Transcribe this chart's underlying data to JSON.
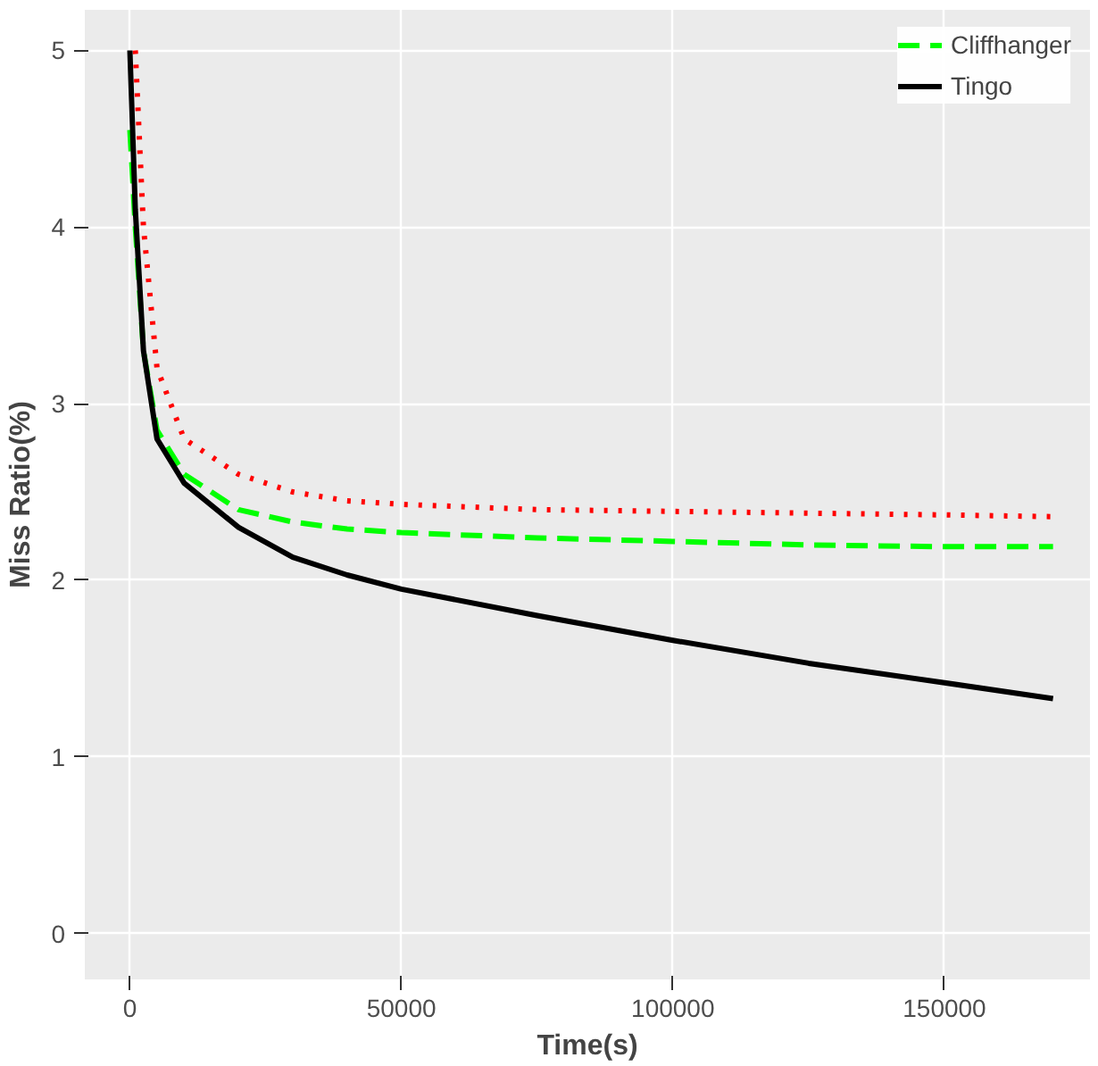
{
  "chart_data": {
    "type": "line",
    "xlabel": "Time(s)",
    "ylabel": "Miss Ratio(%)",
    "xlim": [
      -8300,
      176800
    ],
    "ylim": [
      -0.26,
      5.23
    ],
    "xticks": [
      0,
      50000,
      100000,
      150000
    ],
    "yticks": [
      0,
      1,
      2,
      3,
      4,
      5
    ],
    "grid": true,
    "legend": "top right",
    "series": [
      {
        "name": "Cliffhanger",
        "color": "#00ff00",
        "line_style": "dashed",
        "x": [
          0,
          1000,
          2500,
          5000,
          10000,
          20000,
          30000,
          40000,
          50000,
          75000,
          100000,
          125000,
          150000,
          170000
        ],
        "values": [
          4.55,
          4.0,
          3.3,
          2.85,
          2.6,
          2.4,
          2.33,
          2.29,
          2.27,
          2.24,
          2.22,
          2.2,
          2.19,
          2.19
        ]
      },
      {
        "color": "#ff0000",
        "line_style": "dotted",
        "x": [
          1000,
          2500,
          5000,
          10000,
          20000,
          30000,
          40000,
          50000,
          75000,
          100000,
          125000,
          150000,
          170000
        ],
        "values": [
          5.0,
          4.0,
          3.2,
          2.8,
          2.6,
          2.5,
          2.45,
          2.43,
          2.4,
          2.39,
          2.38,
          2.37,
          2.36
        ]
      },
      {
        "name": "Tingo",
        "color": "#000000",
        "line_style": "solid",
        "x": [
          0,
          1000,
          2500,
          5000,
          10000,
          20000,
          30000,
          40000,
          50000,
          75000,
          100000,
          125000,
          150000,
          170000
        ],
        "values": [
          5.0,
          4.1,
          3.3,
          2.8,
          2.55,
          2.3,
          2.13,
          2.03,
          1.95,
          1.8,
          1.66,
          1.53,
          1.42,
          1.33
        ]
      }
    ]
  }
}
